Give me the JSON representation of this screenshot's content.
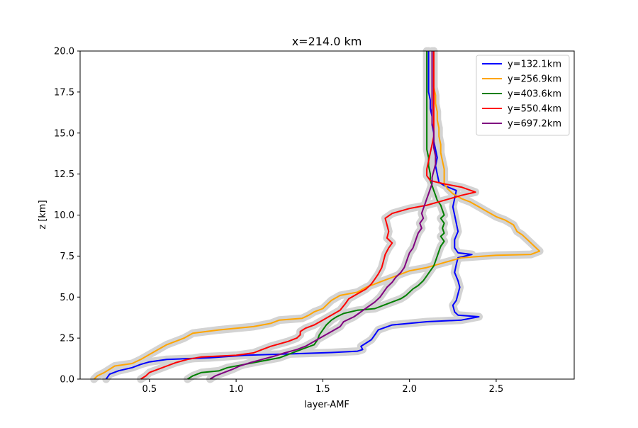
{
  "chart_data": {
    "type": "line",
    "title": "x=214.0 km",
    "xlabel": "layer-AMF",
    "ylabel": "z [km]",
    "xlim": [
      0.1,
      2.95
    ],
    "ylim": [
      0,
      20
    ],
    "xticks": [
      0.5,
      1.0,
      1.5,
      2.0,
      2.5
    ],
    "xtick_labels": [
      "0.5",
      "1.0",
      "1.5",
      "2.0",
      "2.5"
    ],
    "yticks": [
      0,
      2.5,
      5,
      7.5,
      10,
      12.5,
      15,
      17.5,
      20
    ],
    "ytick_labels": [
      "0.0",
      "2.5",
      "5.0",
      "7.5",
      "10.0",
      "12.5",
      "15.0",
      "17.5",
      "20.0"
    ],
    "grid": false,
    "legend_position": "top-right",
    "uncertainty_band_color": "#d3d3d3",
    "series": [
      {
        "name": "y=132.1km",
        "color": "#0000ff",
        "points": [
          [
            0.25,
            0
          ],
          [
            0.27,
            0.3
          ],
          [
            0.32,
            0.5
          ],
          [
            0.4,
            0.7
          ],
          [
            0.45,
            0.9
          ],
          [
            0.5,
            1.05
          ],
          [
            0.6,
            1.2
          ],
          [
            0.85,
            1.3
          ],
          [
            1.05,
            1.45
          ],
          [
            1.35,
            1.55
          ],
          [
            1.55,
            1.62
          ],
          [
            1.7,
            1.7
          ],
          [
            1.73,
            1.8
          ],
          [
            1.72,
            2.0
          ],
          [
            1.75,
            2.2
          ],
          [
            1.78,
            2.4
          ],
          [
            1.8,
            2.7
          ],
          [
            1.82,
            3.0
          ],
          [
            1.9,
            3.3
          ],
          [
            2.1,
            3.5
          ],
          [
            2.3,
            3.6
          ],
          [
            2.4,
            3.8
          ],
          [
            2.28,
            3.9
          ],
          [
            2.26,
            4.1
          ],
          [
            2.25,
            4.5
          ],
          [
            2.27,
            4.8
          ],
          [
            2.28,
            5.2
          ],
          [
            2.29,
            5.6
          ],
          [
            2.28,
            6.0
          ],
          [
            2.26,
            6.5
          ],
          [
            2.27,
            7.0
          ],
          [
            2.28,
            7.4
          ],
          [
            2.36,
            7.6
          ],
          [
            2.28,
            7.7
          ],
          [
            2.26,
            8.0
          ],
          [
            2.26,
            8.5
          ],
          [
            2.28,
            9.0
          ],
          [
            2.27,
            9.5
          ],
          [
            2.26,
            10.0
          ],
          [
            2.25,
            10.5
          ],
          [
            2.26,
            11.0
          ],
          [
            2.27,
            11.5
          ],
          [
            2.2,
            11.8
          ],
          [
            2.17,
            12.0
          ],
          [
            2.16,
            12.5
          ],
          [
            2.15,
            13.0
          ],
          [
            2.16,
            13.5
          ],
          [
            2.15,
            14.0
          ],
          [
            2.14,
            14.5
          ],
          [
            2.14,
            15.0
          ],
          [
            2.13,
            15.5
          ],
          [
            2.13,
            16.0
          ],
          [
            2.12,
            16.5
          ],
          [
            2.12,
            17.0
          ],
          [
            2.11,
            17.5
          ],
          [
            2.11,
            18.0
          ],
          [
            2.11,
            18.5
          ],
          [
            2.11,
            19.0
          ],
          [
            2.11,
            19.5
          ],
          [
            2.11,
            20.0
          ]
        ]
      },
      {
        "name": "y=256.9km",
        "color": "#ffa500",
        "points": [
          [
            0.18,
            0
          ],
          [
            0.2,
            0.2
          ],
          [
            0.24,
            0.4
          ],
          [
            0.27,
            0.6
          ],
          [
            0.3,
            0.8
          ],
          [
            0.4,
            0.95
          ],
          [
            0.45,
            1.2
          ],
          [
            0.5,
            1.5
          ],
          [
            0.55,
            1.8
          ],
          [
            0.6,
            2.1
          ],
          [
            0.7,
            2.5
          ],
          [
            0.75,
            2.8
          ],
          [
            0.9,
            3.0
          ],
          [
            1.1,
            3.2
          ],
          [
            1.2,
            3.4
          ],
          [
            1.25,
            3.6
          ],
          [
            1.38,
            3.7
          ],
          [
            1.42,
            3.9
          ],
          [
            1.45,
            4.1
          ],
          [
            1.5,
            4.3
          ],
          [
            1.52,
            4.5
          ],
          [
            1.55,
            4.8
          ],
          [
            1.6,
            5.1
          ],
          [
            1.7,
            5.3
          ],
          [
            1.75,
            5.6
          ],
          [
            1.8,
            5.8
          ],
          [
            1.85,
            6.0
          ],
          [
            1.9,
            6.2
          ],
          [
            1.95,
            6.4
          ],
          [
            2.0,
            6.6
          ],
          [
            2.1,
            6.8
          ],
          [
            2.2,
            7.1
          ],
          [
            2.3,
            7.4
          ],
          [
            2.5,
            7.55
          ],
          [
            2.7,
            7.6
          ],
          [
            2.75,
            7.8
          ],
          [
            2.72,
            8.1
          ],
          [
            2.68,
            8.5
          ],
          [
            2.65,
            8.8
          ],
          [
            2.62,
            9.0
          ],
          [
            2.6,
            9.4
          ],
          [
            2.55,
            9.7
          ],
          [
            2.5,
            9.9
          ],
          [
            2.45,
            10.2
          ],
          [
            2.4,
            10.5
          ],
          [
            2.35,
            10.8
          ],
          [
            2.3,
            11.0
          ],
          [
            2.25,
            11.3
          ],
          [
            2.22,
            11.6
          ],
          [
            2.2,
            11.9
          ],
          [
            2.2,
            12.3
          ],
          [
            2.2,
            12.8
          ],
          [
            2.19,
            13.3
          ],
          [
            2.18,
            13.8
          ],
          [
            2.18,
            14.3
          ],
          [
            2.17,
            14.8
          ],
          [
            2.17,
            15.3
          ],
          [
            2.16,
            15.8
          ],
          [
            2.16,
            16.3
          ],
          [
            2.15,
            16.8
          ],
          [
            2.15,
            17.3
          ],
          [
            2.14,
            17.8
          ],
          [
            2.14,
            18.3
          ],
          [
            2.14,
            18.8
          ],
          [
            2.14,
            19.3
          ],
          [
            2.14,
            20.0
          ]
        ]
      },
      {
        "name": "y=403.6km",
        "color": "#008000",
        "points": [
          [
            0.72,
            0
          ],
          [
            0.75,
            0.2
          ],
          [
            0.8,
            0.4
          ],
          [
            0.9,
            0.5
          ],
          [
            0.95,
            0.7
          ],
          [
            1.05,
            0.9
          ],
          [
            1.15,
            1.1
          ],
          [
            1.25,
            1.3
          ],
          [
            1.3,
            1.5
          ],
          [
            1.35,
            1.7
          ],
          [
            1.4,
            1.9
          ],
          [
            1.45,
            2.1
          ],
          [
            1.47,
            2.4
          ],
          [
            1.48,
            2.7
          ],
          [
            1.5,
            3.0
          ],
          [
            1.52,
            3.3
          ],
          [
            1.55,
            3.6
          ],
          [
            1.58,
            3.8
          ],
          [
            1.62,
            4.0
          ],
          [
            1.7,
            4.2
          ],
          [
            1.8,
            4.3
          ],
          [
            1.85,
            4.5
          ],
          [
            1.9,
            4.7
          ],
          [
            1.95,
            4.9
          ],
          [
            1.98,
            5.1
          ],
          [
            2.0,
            5.3
          ],
          [
            2.02,
            5.5
          ],
          [
            2.05,
            5.7
          ],
          [
            2.08,
            6.0
          ],
          [
            2.1,
            6.3
          ],
          [
            2.12,
            6.6
          ],
          [
            2.14,
            6.9
          ],
          [
            2.15,
            7.2
          ],
          [
            2.16,
            7.5
          ],
          [
            2.17,
            7.8
          ],
          [
            2.18,
            8.1
          ],
          [
            2.2,
            8.4
          ],
          [
            2.18,
            8.7
          ],
          [
            2.2,
            8.9
          ],
          [
            2.19,
            9.2
          ],
          [
            2.2,
            9.5
          ],
          [
            2.18,
            9.8
          ],
          [
            2.2,
            10.0
          ],
          [
            2.19,
            10.3
          ],
          [
            2.18,
            10.6
          ],
          [
            2.16,
            10.9
          ],
          [
            2.15,
            11.2
          ],
          [
            2.14,
            11.5
          ],
          [
            2.13,
            11.8
          ],
          [
            2.12,
            12.1
          ],
          [
            2.12,
            12.5
          ],
          [
            2.11,
            13.0
          ],
          [
            2.11,
            13.5
          ],
          [
            2.1,
            14.0
          ],
          [
            2.1,
            14.5
          ],
          [
            2.1,
            15.0
          ],
          [
            2.1,
            15.5
          ],
          [
            2.1,
            16.0
          ],
          [
            2.1,
            16.5
          ],
          [
            2.1,
            17.0
          ],
          [
            2.1,
            17.5
          ],
          [
            2.1,
            18.0
          ],
          [
            2.1,
            18.5
          ],
          [
            2.1,
            19.0
          ],
          [
            2.1,
            19.5
          ],
          [
            2.1,
            20.0
          ]
        ]
      },
      {
        "name": "y=550.4km",
        "color": "#ff0000",
        "points": [
          [
            0.45,
            0
          ],
          [
            0.48,
            0.2
          ],
          [
            0.5,
            0.4
          ],
          [
            0.55,
            0.6
          ],
          [
            0.6,
            0.8
          ],
          [
            0.65,
            1.0
          ],
          [
            0.72,
            1.2
          ],
          [
            0.8,
            1.35
          ],
          [
            1.0,
            1.45
          ],
          [
            1.1,
            1.6
          ],
          [
            1.15,
            1.8
          ],
          [
            1.2,
            2.0
          ],
          [
            1.3,
            2.3
          ],
          [
            1.35,
            2.5
          ],
          [
            1.37,
            2.7
          ],
          [
            1.37,
            2.9
          ],
          [
            1.4,
            3.1
          ],
          [
            1.45,
            3.3
          ],
          [
            1.5,
            3.6
          ],
          [
            1.55,
            3.9
          ],
          [
            1.6,
            4.2
          ],
          [
            1.63,
            4.6
          ],
          [
            1.65,
            4.9
          ],
          [
            1.7,
            5.2
          ],
          [
            1.75,
            5.5
          ],
          [
            1.78,
            5.8
          ],
          [
            1.8,
            6.1
          ],
          [
            1.82,
            6.4
          ],
          [
            1.84,
            6.8
          ],
          [
            1.85,
            7.2
          ],
          [
            1.86,
            7.6
          ],
          [
            1.88,
            8.0
          ],
          [
            1.9,
            8.3
          ],
          [
            1.87,
            8.6
          ],
          [
            1.88,
            9.0
          ],
          [
            1.87,
            9.4
          ],
          [
            1.86,
            9.8
          ],
          [
            1.9,
            10.1
          ],
          [
            2.0,
            10.4
          ],
          [
            2.1,
            10.6
          ],
          [
            2.2,
            10.9
          ],
          [
            2.3,
            11.2
          ],
          [
            2.38,
            11.4
          ],
          [
            2.3,
            11.7
          ],
          [
            2.2,
            11.9
          ],
          [
            2.12,
            12.1
          ],
          [
            2.1,
            12.4
          ],
          [
            2.1,
            12.8
          ],
          [
            2.11,
            13.3
          ],
          [
            2.12,
            13.8
          ],
          [
            2.13,
            14.3
          ],
          [
            2.14,
            14.8
          ],
          [
            2.14,
            15.3
          ],
          [
            2.14,
            15.8
          ],
          [
            2.14,
            16.3
          ],
          [
            2.14,
            16.8
          ],
          [
            2.14,
            17.3
          ],
          [
            2.14,
            17.8
          ],
          [
            2.14,
            18.3
          ],
          [
            2.14,
            18.8
          ],
          [
            2.14,
            19.3
          ],
          [
            2.14,
            20.0
          ]
        ]
      },
      {
        "name": "y=697.2km",
        "color": "#800080",
        "points": [
          [
            0.85,
            0
          ],
          [
            0.88,
            0.2
          ],
          [
            0.93,
            0.4
          ],
          [
            0.98,
            0.6
          ],
          [
            1.02,
            0.8
          ],
          [
            1.08,
            1.0
          ],
          [
            1.15,
            1.2
          ],
          [
            1.22,
            1.4
          ],
          [
            1.28,
            1.6
          ],
          [
            1.35,
            1.8
          ],
          [
            1.4,
            2.0
          ],
          [
            1.45,
            2.3
          ],
          [
            1.5,
            2.6
          ],
          [
            1.55,
            2.9
          ],
          [
            1.6,
            3.2
          ],
          [
            1.62,
            3.5
          ],
          [
            1.68,
            3.8
          ],
          [
            1.72,
            4.1
          ],
          [
            1.76,
            4.4
          ],
          [
            1.8,
            4.7
          ],
          [
            1.83,
            5.0
          ],
          [
            1.85,
            5.3
          ],
          [
            1.87,
            5.6
          ],
          [
            1.9,
            5.9
          ],
          [
            1.92,
            6.2
          ],
          [
            1.95,
            6.5
          ],
          [
            1.97,
            6.8
          ],
          [
            1.98,
            7.1
          ],
          [
            1.99,
            7.4
          ],
          [
            2.0,
            7.7
          ],
          [
            2.02,
            8.0
          ],
          [
            2.03,
            8.3
          ],
          [
            2.04,
            8.6
          ],
          [
            2.05,
            8.9
          ],
          [
            2.07,
            9.2
          ],
          [
            2.06,
            9.5
          ],
          [
            2.08,
            9.8
          ],
          [
            2.07,
            10.1
          ],
          [
            2.08,
            10.4
          ],
          [
            2.09,
            10.7
          ],
          [
            2.1,
            11.0
          ],
          [
            2.11,
            11.3
          ],
          [
            2.12,
            11.6
          ],
          [
            2.13,
            11.9
          ],
          [
            2.13,
            12.3
          ],
          [
            2.14,
            12.7
          ],
          [
            2.15,
            13.1
          ],
          [
            2.15,
            13.6
          ],
          [
            2.14,
            14.1
          ],
          [
            2.14,
            14.6
          ],
          [
            2.14,
            15.1
          ],
          [
            2.13,
            15.6
          ],
          [
            2.13,
            16.1
          ],
          [
            2.13,
            16.6
          ],
          [
            2.13,
            17.1
          ],
          [
            2.13,
            17.6
          ],
          [
            2.13,
            18.1
          ],
          [
            2.13,
            18.6
          ],
          [
            2.13,
            19.1
          ],
          [
            2.13,
            20.0
          ]
        ]
      }
    ]
  }
}
